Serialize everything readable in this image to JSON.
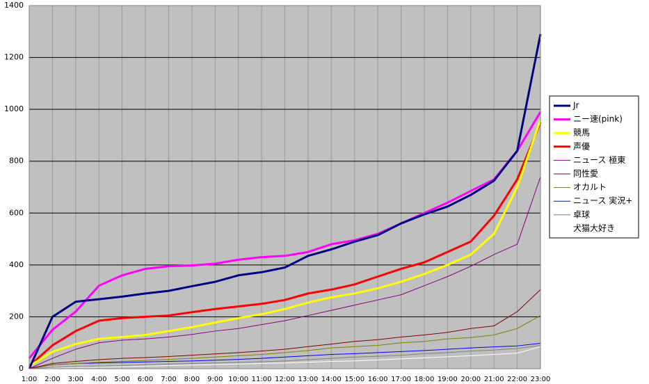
{
  "chart_data": {
    "type": "line",
    "categories": [
      "1:00",
      "2:00",
      "3:00",
      "4:00",
      "5:00",
      "6:00",
      "7:00",
      "8:00",
      "9:00",
      "10:00",
      "11:00",
      "12:00",
      "13:00",
      "14:00",
      "15:00",
      "16:00",
      "17:00",
      "18:00",
      "19:00",
      "20:00",
      "21:00",
      "22:00",
      "23:00"
    ],
    "series": [
      {
        "name": "Jr",
        "color": "#000080",
        "line_width": 3,
        "values": [
          0,
          200,
          258,
          268,
          278,
          290,
          300,
          318,
          335,
          360,
          372,
          390,
          435,
          460,
          490,
          515,
          560,
          595,
          625,
          670,
          725,
          840,
          1290
        ]
      },
      {
        "name": "ニー速(pink)",
        "color": "#ff00ff",
        "line_width": 3,
        "values": [
          40,
          150,
          220,
          320,
          360,
          385,
          395,
          398,
          405,
          420,
          430,
          435,
          450,
          480,
          495,
          520,
          560,
          600,
          640,
          685,
          730,
          840,
          990
        ]
      },
      {
        "name": "競馬",
        "color": "#ffff00",
        "line_width": 3,
        "values": [
          10,
          65,
          95,
          115,
          122,
          130,
          145,
          160,
          178,
          195,
          210,
          230,
          255,
          275,
          290,
          310,
          335,
          365,
          400,
          440,
          520,
          700,
          960
        ]
      },
      {
        "name": "声優",
        "color": "#ff0000",
        "line_width": 3,
        "values": [
          10,
          90,
          145,
          185,
          195,
          200,
          205,
          218,
          230,
          240,
          250,
          265,
          290,
          305,
          325,
          355,
          385,
          410,
          450,
          490,
          590,
          730,
          950
        ]
      },
      {
        "name": "ニュース 極東",
        "color": "#800080",
        "line_width": 1,
        "values": [
          0,
          40,
          75,
          100,
          110,
          115,
          122,
          132,
          145,
          155,
          170,
          185,
          205,
          225,
          245,
          265,
          285,
          320,
          355,
          395,
          440,
          480,
          740
        ]
      },
      {
        "name": "同性愛",
        "color": "#800000",
        "line_width": 1,
        "values": [
          0,
          20,
          28,
          35,
          40,
          43,
          47,
          52,
          57,
          62,
          68,
          75,
          85,
          95,
          105,
          112,
          122,
          130,
          140,
          155,
          165,
          220,
          305
        ]
      },
      {
        "name": "オカルト",
        "color": "#808000",
        "line_width": 1,
        "values": [
          0,
          15,
          20,
          25,
          28,
          32,
          36,
          40,
          45,
          50,
          55,
          62,
          70,
          80,
          85,
          90,
          100,
          105,
          115,
          120,
          130,
          155,
          205
        ]
      },
      {
        "name": "ニュース 実況+",
        "color": "#0000ff",
        "line_width": 1,
        "values": [
          0,
          15,
          20,
          22,
          24,
          26,
          28,
          30,
          33,
          36,
          40,
          45,
          50,
          55,
          58,
          62,
          66,
          70,
          75,
          80,
          84,
          88,
          98
        ]
      },
      {
        "name": "卓球",
        "color": "#808080",
        "line_width": 1,
        "values": [
          0,
          5,
          8,
          10,
          12,
          15,
          18,
          20,
          22,
          24,
          27,
          30,
          35,
          40,
          45,
          48,
          52,
          58,
          62,
          68,
          72,
          78,
          90
        ]
      },
      {
        "name": "犬猫大好き",
        "color": "#ffffff",
        "line_width": 1,
        "values": [
          0,
          3,
          5,
          6,
          8,
          10,
          12,
          14,
          16,
          18,
          20,
          22,
          25,
          28,
          30,
          34,
          38,
          42,
          46,
          50,
          55,
          60,
          85
        ]
      }
    ],
    "ylim": [
      0,
      1400
    ],
    "yticks": [
      0,
      200,
      400,
      600,
      800,
      1000,
      1200,
      1400
    ],
    "grid": true,
    "legend": "right"
  }
}
